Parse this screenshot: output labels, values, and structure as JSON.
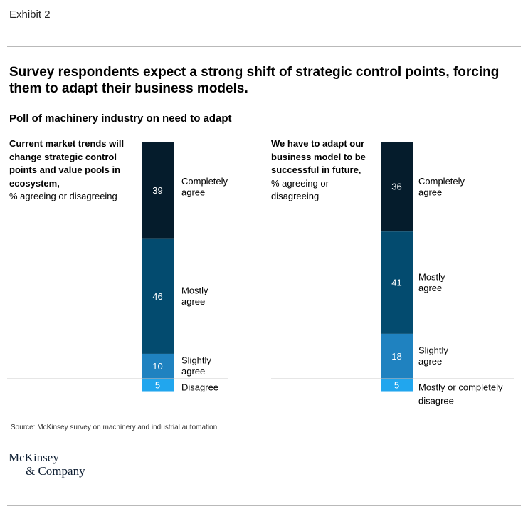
{
  "exhibit_label": "Exhibit 2",
  "headline": "Survey respondents expect a strong shift of strategic control points, forcing them to adapt their business models.",
  "subtitle": "Poll of machinery industry on need to adapt",
  "source": "Source: McKinsey survey on machinery and industrial automation",
  "logo": {
    "line1": "McKinsey",
    "line2": "& Company"
  },
  "colors": {
    "segment_1": "#051c2c",
    "segment_2": "#034b6f",
    "segment_3": "#1f82c0",
    "segment_4": "#21a6ee",
    "baseline": "#cccccc"
  },
  "chart_data": [
    {
      "type": "bar",
      "stacked": true,
      "title_bold": "Current market trends will change strategic control points and value pools in ecosystem,",
      "title_unit": "% agreeing or disagreeing",
      "segments": [
        {
          "label": [
            "Completely",
            "agree"
          ],
          "value": 39
        },
        {
          "label": [
            "Mostly",
            "agree"
          ],
          "value": 46
        },
        {
          "label": [
            "Slightly",
            "agree"
          ],
          "value": 10
        },
        {
          "label": [
            "Disagree"
          ],
          "value": 5
        }
      ]
    },
    {
      "type": "bar",
      "stacked": true,
      "title_bold": "We have to adapt our business model to be successful in future,",
      "title_unit": "% agreeing or disagreeing",
      "segments": [
        {
          "label": [
            "Completely",
            "agree"
          ],
          "value": 36
        },
        {
          "label": [
            "Mostly",
            "agree"
          ],
          "value": 41
        },
        {
          "label": [
            "Slightly",
            "agree"
          ],
          "value": 18
        },
        {
          "label": [
            "Mostly or completely",
            "disagree"
          ],
          "value": 5
        }
      ]
    }
  ]
}
